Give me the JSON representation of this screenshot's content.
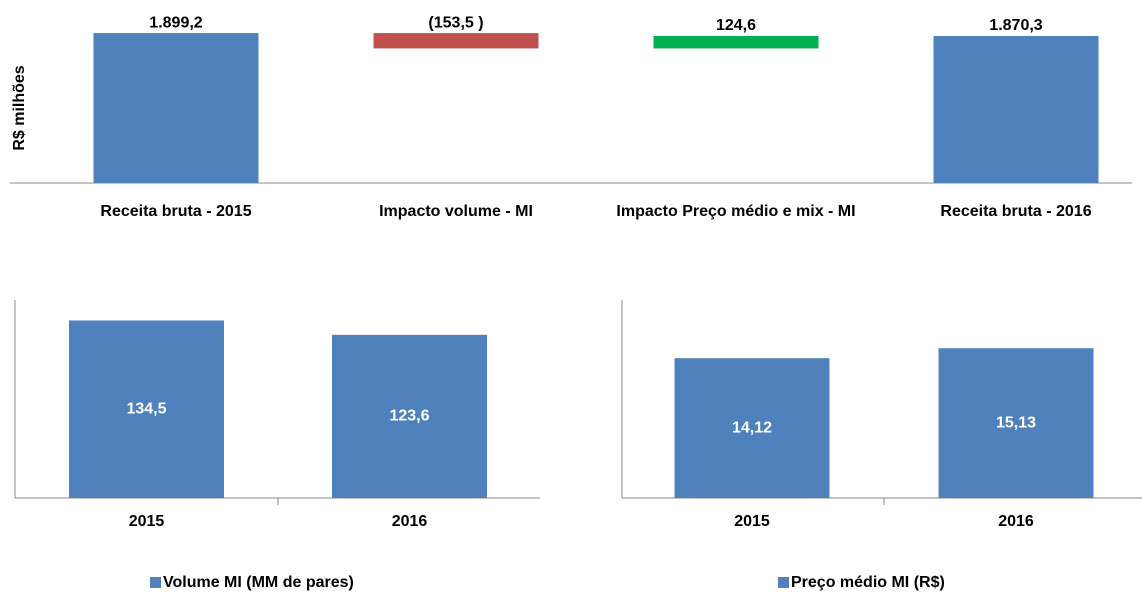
{
  "chart_data": [
    {
      "type": "waterfall",
      "y_label": "R$ milhões",
      "categories": [
        "Receita bruta - 2015",
        "Impacto volume - MI",
        "Impacto Preço médio e mix - MI",
        "Receita bruta - 2016"
      ],
      "values": [
        1899.2,
        -153.5,
        124.6,
        1870.3
      ],
      "value_labels": [
        "1.899,2",
        "(153,5 )",
        "124,6",
        "1.870,3"
      ],
      "colors": [
        "#4f81bd",
        "#c0504d",
        "#00b050",
        "#4f81bd"
      ],
      "ylim": [
        400,
        1900
      ]
    },
    {
      "type": "bar",
      "categories": [
        "2015",
        "2016"
      ],
      "series": [
        {
          "name": "Volume MI (MM de pares)",
          "color": "#4f81bd",
          "values": [
            134.5,
            123.6
          ],
          "value_labels": [
            "134,5",
            "123,6"
          ]
        }
      ],
      "ylim": [
        0,
        150
      ]
    },
    {
      "type": "bar",
      "categories": [
        "2015",
        "2016"
      ],
      "series": [
        {
          "name": "Preço médio MI (R$)",
          "color": "#4f81bd",
          "values": [
            14.12,
            15.13
          ],
          "value_labels": [
            "14,12",
            "15,13"
          ]
        }
      ],
      "ylim": [
        0,
        20
      ]
    }
  ]
}
